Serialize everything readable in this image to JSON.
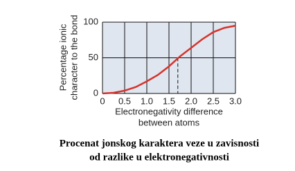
{
  "chart_data": {
    "type": "line",
    "x": [
      0,
      0.25,
      0.5,
      0.75,
      1,
      1.25,
      1.5,
      1.75,
      2,
      2.25,
      2.5,
      2.75,
      3
    ],
    "series": [
      {
        "color": "#d6322a",
        "values": [
          0,
          1,
          4,
          9,
          17,
          26,
          38,
          52,
          64,
          76,
          86,
          92,
          95
        ]
      }
    ],
    "xlim": [
      0,
      3
    ],
    "ylim": [
      0,
      100
    ],
    "xticks": [
      0,
      0.5,
      {
        "value": 1,
        "label": "1.0"
      },
      1.5,
      {
        "value": 2,
        "label": "2.0"
      },
      2.5,
      {
        "value": 3,
        "label": "3.0"
      }
    ],
    "yticks": [
      0,
      50,
      100
    ],
    "grid": true,
    "guide": {
      "x": 1.7,
      "y": 50
    },
    "xlabel": [
      "Electronegativity difference",
      "between atoms"
    ],
    "ylabel": [
      "Percentage ionic",
      "character to the bond"
    ]
  },
  "caption": [
    "Procenat jonskog karaktera veze u zavisnosti",
    "od razlike u elektronegativnosti"
  ]
}
